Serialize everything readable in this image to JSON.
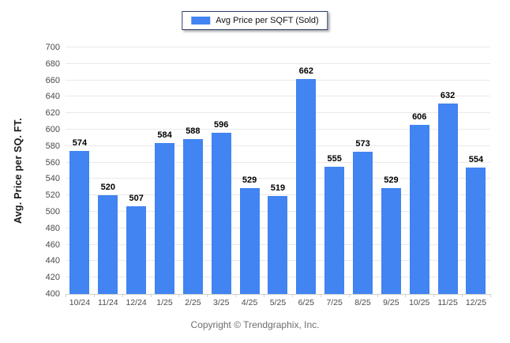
{
  "legend": {
    "label": "Avg Price per SQFT (Sold)",
    "swatch_color": "#4184F2"
  },
  "chart_data": {
    "type": "bar",
    "categories": [
      "10/24",
      "11/24",
      "12/24",
      "1/25",
      "2/25",
      "3/25",
      "4/25",
      "5/25",
      "6/25",
      "7/25",
      "8/25",
      "9/25",
      "10/25",
      "11/25",
      "12/25"
    ],
    "values": [
      574,
      520,
      507,
      584,
      588,
      596,
      529,
      519,
      662,
      555,
      573,
      529,
      606,
      632,
      554
    ],
    "title": "",
    "xlabel": "",
    "ylabel": "Avg. Price per SQ. FT.",
    "ylim": [
      400,
      700
    ],
    "ytick_step": 20,
    "grid": true,
    "legend_entries": [
      "Avg Price per SQFT (Sold)"
    ],
    "legend_position": "top-center",
    "bar_color": "#4184F2"
  },
  "footer": {
    "copyright": "Copyright © Trendgraphix, Inc."
  },
  "colors": {
    "bar": "#4184F2",
    "gridline": "#e9e9e9",
    "axis": "#d0d0d0",
    "tick_text": "#4a4a4a",
    "value_label": "#000000",
    "legend_border": "#2B3F6B",
    "footer_text": "#6e6e6e"
  }
}
